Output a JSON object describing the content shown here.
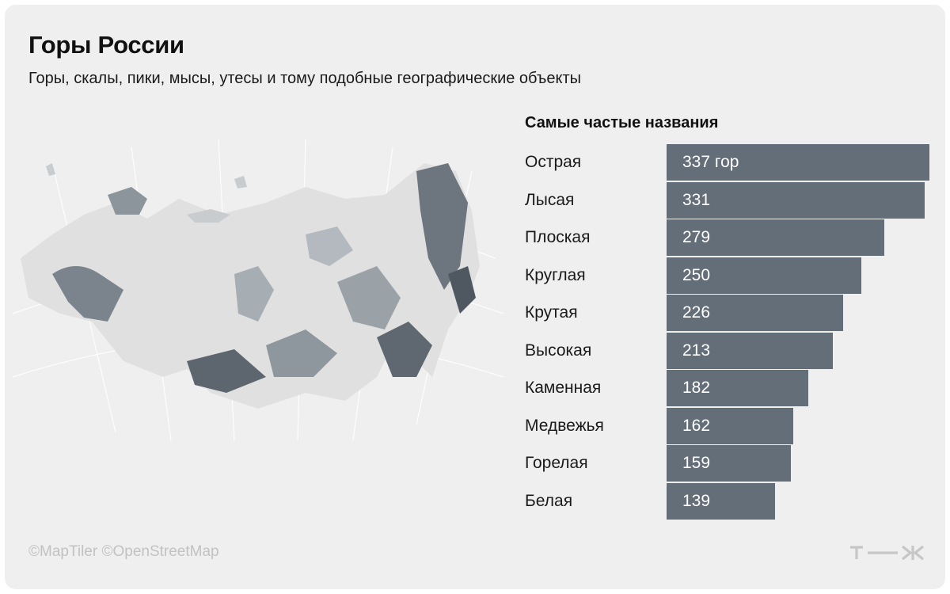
{
  "header": {
    "title": "Горы России",
    "subtitle": "Горы, скалы, пики, мысы, утесы и тому подобные географические объекты"
  },
  "map": {
    "credit": "©MapTiler ©OpenStreetMap"
  },
  "chart_data": {
    "type": "bar",
    "orientation": "horizontal",
    "title": "Самые частые названия",
    "categories": [
      "Острая",
      "Лысая",
      "Плоская",
      "Круглая",
      "Крутая",
      "Высокая",
      "Каменная",
      "Медвежья",
      "Горелая",
      "Белая"
    ],
    "values": [
      337,
      331,
      279,
      250,
      226,
      213,
      182,
      162,
      159,
      139
    ],
    "value_labels": [
      "337 гор",
      "331",
      "279",
      "250",
      "226",
      "213",
      "182",
      "162",
      "159",
      "139"
    ],
    "grid": false,
    "bar_color": "#646e78"
  },
  "colors": {
    "background": "#efefef",
    "bar": "#646e78",
    "credit": "#c2c2c2"
  },
  "logo": {
    "icon": "tzh-logo-icon",
    "text": "т—ж"
  }
}
